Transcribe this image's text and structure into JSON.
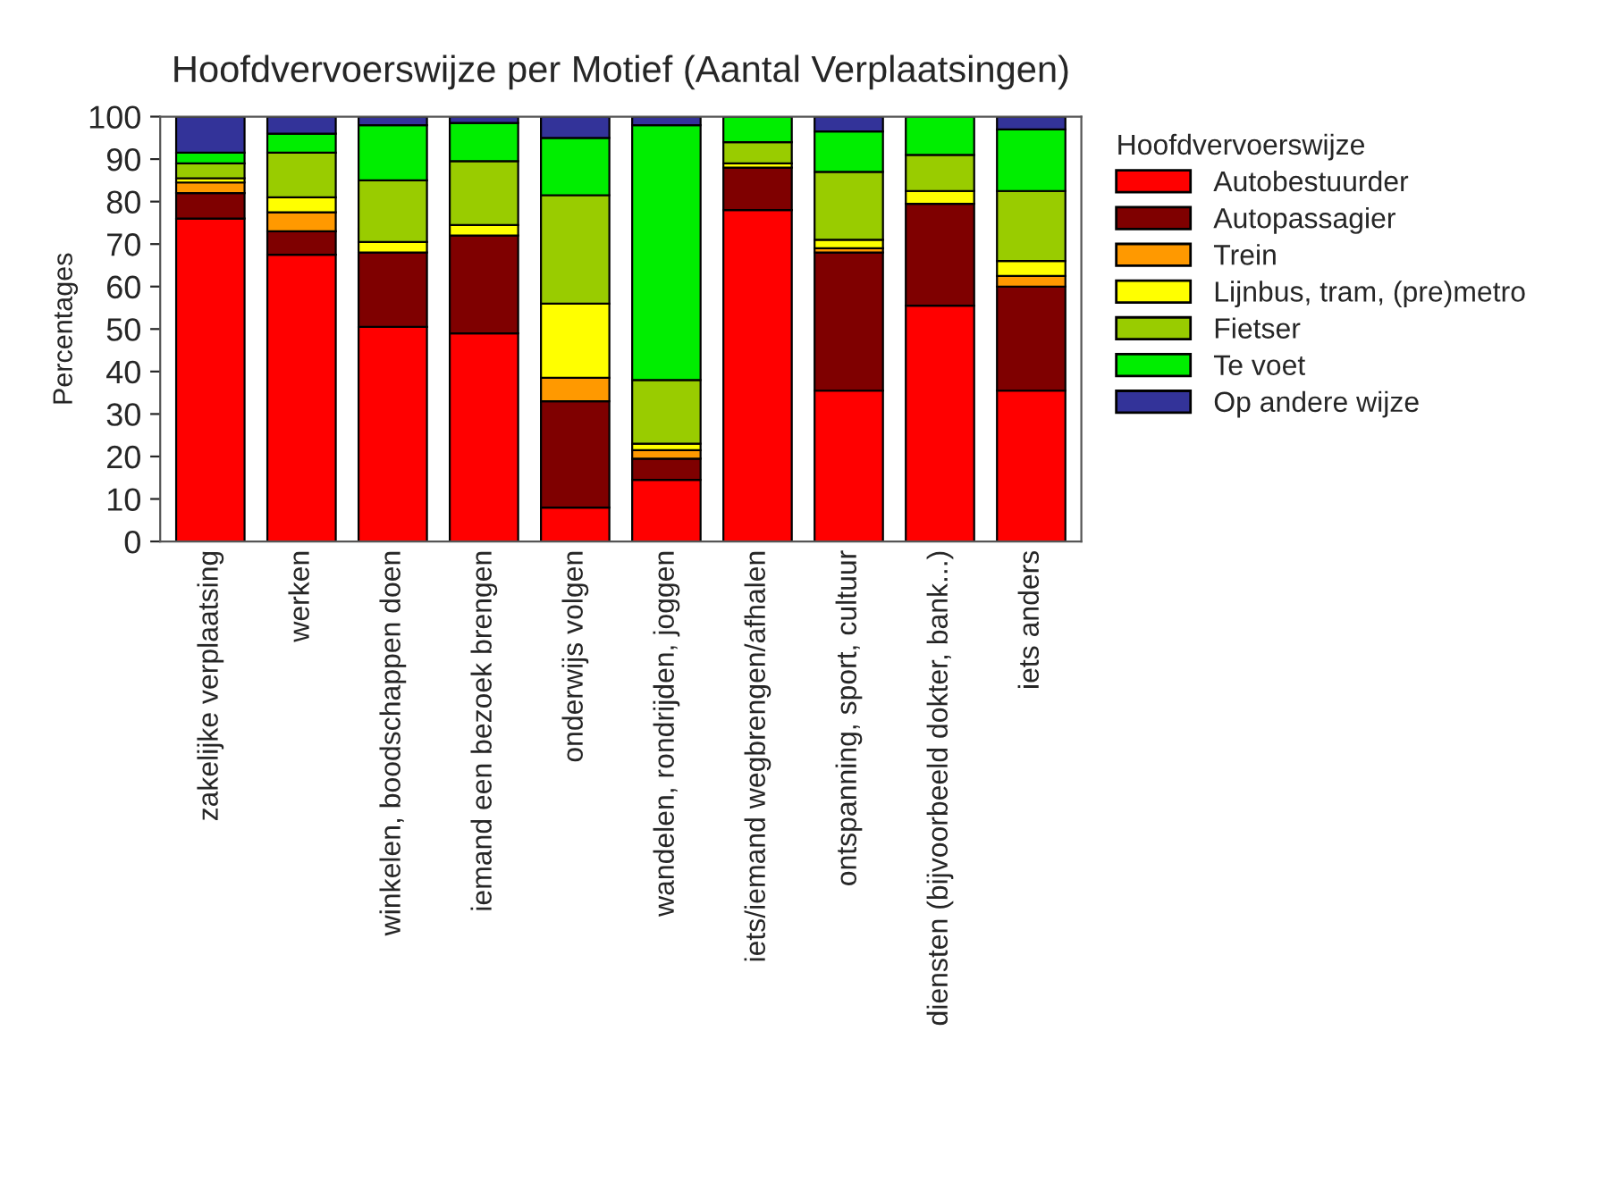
{
  "chart_data": {
    "type": "bar",
    "title": "Hoofdvervoerswijze per Motief (Aantal Verplaatsingen)",
    "ylabel": "Percentages",
    "legend_title": "Hoofdvervoerswijze",
    "categories": [
      "zakelijke verplaatsing",
      "werken",
      "winkelen, boodschappen doen",
      "iemand een bezoek brengen",
      "onderwijs volgen",
      "wandelen, rondrijden, joggen",
      "iets/iemand wegbrengen/afhalen",
      "ontspanning, sport, cultuur",
      "diensten (bijvoorbeeld dokter, bank...)",
      "iets anders"
    ],
    "stacked": true,
    "series": [
      {
        "name": "Autobestuurder",
        "color": "#ff0000",
        "values": [
          76,
          67.5,
          50.5,
          49,
          8,
          14.5,
          78,
          35.5,
          55.5,
          35.5
        ]
      },
      {
        "name": "Autopassagier",
        "color": "#7f0000",
        "values": [
          6,
          5.5,
          17.5,
          23,
          25,
          5,
          10,
          32.5,
          24,
          24.5
        ]
      },
      {
        "name": "Trein",
        "color": "#ff9900",
        "values": [
          2.5,
          4.5,
          0,
          0,
          5.5,
          2,
          0,
          1,
          0,
          2.5
        ]
      },
      {
        "name": "Lijnbus, tram, (pre)metro",
        "color": "#ffff00",
        "values": [
          1,
          3.5,
          2.5,
          2.5,
          17.5,
          1.5,
          1,
          2,
          3,
          3.5
        ]
      },
      {
        "name": "Fietser",
        "color": "#99cc00",
        "values": [
          3.5,
          10.5,
          14.5,
          15,
          25.5,
          15,
          5,
          16,
          8.5,
          16.5
        ]
      },
      {
        "name": "Te voet",
        "color": "#00ee00",
        "values": [
          2.5,
          4.5,
          13,
          9,
          13.5,
          60,
          6,
          9.5,
          9,
          14.5
        ]
      },
      {
        "name": "Op andere wijze",
        "color": "#333399",
        "values": [
          8.5,
          4,
          2,
          1.5,
          5,
          2,
          0,
          3.5,
          0,
          3
        ]
      }
    ],
    "ylim": [
      0,
      100
    ],
    "yticks": [
      0,
      10,
      20,
      30,
      40,
      50,
      60,
      70,
      80,
      90,
      100
    ],
    "grid": false,
    "legend": "top right"
  }
}
